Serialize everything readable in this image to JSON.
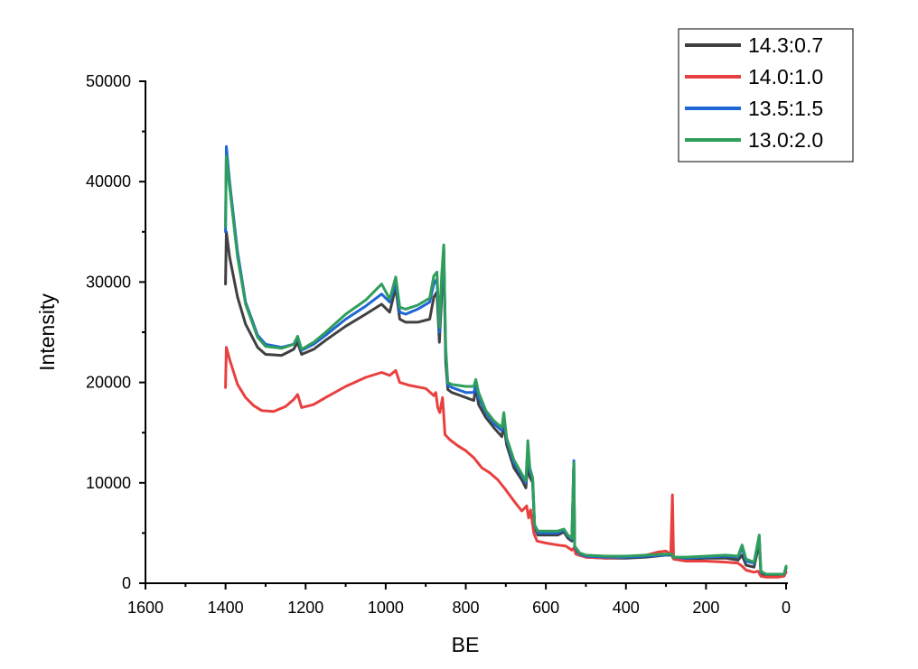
{
  "chart_data": {
    "type": "line",
    "title": "",
    "xlabel": "BE",
    "ylabel": "Intensity",
    "xlim": [
      1600,
      0
    ],
    "ylim": [
      0,
      50000
    ],
    "x_reversed": true,
    "x_ticks": [
      1600,
      1400,
      1200,
      1000,
      800,
      600,
      400,
      200,
      0
    ],
    "y_ticks": [
      0,
      10000,
      20000,
      30000,
      40000,
      50000
    ],
    "grid": false,
    "legend_position": "top-right",
    "series": [
      {
        "name": "14.3:0.7",
        "color": "#404040",
        "points": [
          [
            1400,
            29800
          ],
          [
            1398,
            35000
          ],
          [
            1390,
            32500
          ],
          [
            1370,
            28500
          ],
          [
            1350,
            25800
          ],
          [
            1320,
            23500
          ],
          [
            1300,
            22800
          ],
          [
            1260,
            22700
          ],
          [
            1230,
            23300
          ],
          [
            1220,
            24000
          ],
          [
            1210,
            22800
          ],
          [
            1180,
            23300
          ],
          [
            1150,
            24200
          ],
          [
            1100,
            25600
          ],
          [
            1050,
            26800
          ],
          [
            1010,
            27800
          ],
          [
            990,
            27000
          ],
          [
            975,
            29500
          ],
          [
            965,
            26300
          ],
          [
            950,
            26000
          ],
          [
            920,
            26000
          ],
          [
            890,
            26300
          ],
          [
            880,
            28500
          ],
          [
            872,
            29000
          ],
          [
            866,
            24000
          ],
          [
            860,
            28800
          ],
          [
            855,
            33000
          ],
          [
            850,
            22000
          ],
          [
            845,
            19300
          ],
          [
            835,
            19000
          ],
          [
            800,
            18500
          ],
          [
            780,
            18200
          ],
          [
            775,
            19500
          ],
          [
            768,
            17800
          ],
          [
            750,
            16500
          ],
          [
            730,
            15500
          ],
          [
            710,
            14600
          ],
          [
            705,
            15800
          ],
          [
            698,
            13800
          ],
          [
            680,
            11500
          ],
          [
            660,
            10300
          ],
          [
            650,
            9500
          ],
          [
            645,
            12000
          ],
          [
            640,
            10600
          ],
          [
            633,
            10000
          ],
          [
            628,
            5500
          ],
          [
            620,
            4800
          ],
          [
            570,
            4800
          ],
          [
            555,
            5100
          ],
          [
            545,
            4500
          ],
          [
            535,
            4200
          ],
          [
            530,
            12000
          ],
          [
            528,
            3500
          ],
          [
            515,
            2800
          ],
          [
            500,
            2600
          ],
          [
            450,
            2500
          ],
          [
            400,
            2500
          ],
          [
            350,
            2600
          ],
          [
            300,
            2800
          ],
          [
            285,
            2800
          ],
          [
            282,
            2500
          ],
          [
            250,
            2400
          ],
          [
            200,
            2500
          ],
          [
            150,
            2500
          ],
          [
            120,
            2300
          ],
          [
            110,
            2800
          ],
          [
            100,
            1800
          ],
          [
            80,
            1600
          ],
          [
            67,
            4000
          ],
          [
            63,
            1000
          ],
          [
            50,
            800
          ],
          [
            20,
            800
          ],
          [
            5,
            800
          ],
          [
            0,
            1500
          ]
        ]
      },
      {
        "name": "14.0:1.0",
        "color": "#e8403f",
        "points": [
          [
            1400,
            19500
          ],
          [
            1398,
            23500
          ],
          [
            1390,
            22300
          ],
          [
            1370,
            19800
          ],
          [
            1350,
            18500
          ],
          [
            1330,
            17700
          ],
          [
            1310,
            17200
          ],
          [
            1280,
            17100
          ],
          [
            1250,
            17600
          ],
          [
            1230,
            18300
          ],
          [
            1220,
            18800
          ],
          [
            1210,
            17500
          ],
          [
            1180,
            17800
          ],
          [
            1150,
            18500
          ],
          [
            1100,
            19600
          ],
          [
            1050,
            20500
          ],
          [
            1010,
            21000
          ],
          [
            990,
            20700
          ],
          [
            975,
            21200
          ],
          [
            965,
            20000
          ],
          [
            940,
            19700
          ],
          [
            900,
            19400
          ],
          [
            880,
            18700
          ],
          [
            875,
            19000
          ],
          [
            870,
            17500
          ],
          [
            865,
            17000
          ],
          [
            858,
            18500
          ],
          [
            852,
            14800
          ],
          [
            840,
            14300
          ],
          [
            820,
            13700
          ],
          [
            800,
            13200
          ],
          [
            780,
            12500
          ],
          [
            760,
            11500
          ],
          [
            740,
            11000
          ],
          [
            720,
            10300
          ],
          [
            700,
            9300
          ],
          [
            680,
            8200
          ],
          [
            660,
            7200
          ],
          [
            648,
            7700
          ],
          [
            643,
            6500
          ],
          [
            638,
            7300
          ],
          [
            630,
            5000
          ],
          [
            622,
            4200
          ],
          [
            600,
            4000
          ],
          [
            570,
            3800
          ],
          [
            550,
            3700
          ],
          [
            535,
            3300
          ],
          [
            530,
            3500
          ],
          [
            525,
            2900
          ],
          [
            500,
            2600
          ],
          [
            450,
            2500
          ],
          [
            400,
            2600
          ],
          [
            350,
            2800
          ],
          [
            320,
            3100
          ],
          [
            300,
            3200
          ],
          [
            288,
            2900
          ],
          [
            284,
            8800
          ],
          [
            281,
            2400
          ],
          [
            250,
            2200
          ],
          [
            200,
            2200
          ],
          [
            150,
            2100
          ],
          [
            120,
            2000
          ],
          [
            110,
            1700
          ],
          [
            100,
            1300
          ],
          [
            80,
            1100
          ],
          [
            70,
            1200
          ],
          [
            63,
            700
          ],
          [
            50,
            600
          ],
          [
            20,
            600
          ],
          [
            5,
            700
          ],
          [
            0,
            1100
          ]
        ]
      },
      {
        "name": "13.5:1.5",
        "color": "#1f66d6",
        "points": [
          [
            1400,
            35000
          ],
          [
            1398,
            43500
          ],
          [
            1390,
            40000
          ],
          [
            1370,
            33000
          ],
          [
            1350,
            28000
          ],
          [
            1320,
            24700
          ],
          [
            1300,
            23800
          ],
          [
            1260,
            23500
          ],
          [
            1230,
            23800
          ],
          [
            1220,
            24400
          ],
          [
            1210,
            23200
          ],
          [
            1180,
            23800
          ],
          [
            1150,
            24700
          ],
          [
            1100,
            26300
          ],
          [
            1050,
            27600
          ],
          [
            1010,
            28800
          ],
          [
            990,
            28000
          ],
          [
            975,
            30000
          ],
          [
            965,
            27000
          ],
          [
            950,
            26800
          ],
          [
            920,
            27300
          ],
          [
            890,
            28000
          ],
          [
            880,
            29800
          ],
          [
            872,
            30300
          ],
          [
            866,
            25000
          ],
          [
            860,
            30000
          ],
          [
            855,
            33500
          ],
          [
            850,
            23000
          ],
          [
            845,
            19700
          ],
          [
            835,
            19500
          ],
          [
            800,
            19000
          ],
          [
            780,
            19000
          ],
          [
            775,
            19800
          ],
          [
            768,
            18500
          ],
          [
            750,
            17000
          ],
          [
            730,
            15900
          ],
          [
            710,
            15200
          ],
          [
            705,
            16500
          ],
          [
            698,
            14300
          ],
          [
            680,
            12000
          ],
          [
            660,
            10700
          ],
          [
            650,
            10000
          ],
          [
            645,
            13300
          ],
          [
            640,
            11200
          ],
          [
            633,
            10400
          ],
          [
            628,
            5700
          ],
          [
            620,
            5000
          ],
          [
            570,
            5000
          ],
          [
            555,
            5300
          ],
          [
            545,
            4700
          ],
          [
            535,
            4400
          ],
          [
            530,
            12200
          ],
          [
            528,
            3600
          ],
          [
            515,
            2900
          ],
          [
            500,
            2700
          ],
          [
            450,
            2600
          ],
          [
            400,
            2600
          ],
          [
            350,
            2700
          ],
          [
            300,
            2800
          ],
          [
            285,
            2900
          ],
          [
            282,
            2600
          ],
          [
            250,
            2500
          ],
          [
            200,
            2600
          ],
          [
            150,
            2700
          ],
          [
            120,
            2600
          ],
          [
            110,
            3500
          ],
          [
            100,
            2200
          ],
          [
            80,
            2000
          ],
          [
            67,
            4700
          ],
          [
            63,
            1100
          ],
          [
            50,
            900
          ],
          [
            20,
            900
          ],
          [
            5,
            900
          ],
          [
            0,
            1600
          ]
        ]
      },
      {
        "name": "13.0:2.0",
        "color": "#2f9e5b",
        "points": [
          [
            1400,
            35500
          ],
          [
            1398,
            42500
          ],
          [
            1390,
            39500
          ],
          [
            1370,
            32500
          ],
          [
            1350,
            27800
          ],
          [
            1320,
            24500
          ],
          [
            1300,
            23600
          ],
          [
            1260,
            23400
          ],
          [
            1230,
            23800
          ],
          [
            1220,
            24600
          ],
          [
            1210,
            23300
          ],
          [
            1180,
            24000
          ],
          [
            1150,
            25000
          ],
          [
            1100,
            26800
          ],
          [
            1050,
            28200
          ],
          [
            1010,
            29800
          ],
          [
            990,
            28300
          ],
          [
            975,
            30500
          ],
          [
            965,
            27500
          ],
          [
            950,
            27300
          ],
          [
            920,
            27700
          ],
          [
            890,
            28400
          ],
          [
            880,
            30600
          ],
          [
            872,
            31000
          ],
          [
            866,
            25500
          ],
          [
            860,
            30800
          ],
          [
            855,
            33700
          ],
          [
            850,
            23500
          ],
          [
            845,
            20000
          ],
          [
            835,
            19800
          ],
          [
            800,
            19600
          ],
          [
            780,
            19600
          ],
          [
            775,
            20300
          ],
          [
            768,
            19000
          ],
          [
            750,
            17200
          ],
          [
            730,
            16200
          ],
          [
            710,
            15500
          ],
          [
            705,
            17000
          ],
          [
            698,
            14500
          ],
          [
            680,
            12300
          ],
          [
            660,
            10900
          ],
          [
            650,
            10200
          ],
          [
            645,
            14200
          ],
          [
            640,
            11500
          ],
          [
            633,
            10500
          ],
          [
            628,
            5800
          ],
          [
            620,
            5200
          ],
          [
            570,
            5200
          ],
          [
            555,
            5400
          ],
          [
            545,
            4800
          ],
          [
            535,
            4500
          ],
          [
            530,
            12000
          ],
          [
            528,
            3700
          ],
          [
            515,
            3000
          ],
          [
            500,
            2800
          ],
          [
            450,
            2700
          ],
          [
            400,
            2700
          ],
          [
            350,
            2800
          ],
          [
            300,
            2900
          ],
          [
            285,
            2900
          ],
          [
            282,
            2600
          ],
          [
            250,
            2600
          ],
          [
            200,
            2700
          ],
          [
            150,
            2800
          ],
          [
            120,
            2700
          ],
          [
            110,
            3800
          ],
          [
            100,
            2400
          ],
          [
            80,
            2100
          ],
          [
            67,
            4800
          ],
          [
            63,
            1200
          ],
          [
            50,
            900
          ],
          [
            20,
            900
          ],
          [
            5,
            900
          ],
          [
            0,
            1700
          ]
        ]
      }
    ]
  }
}
